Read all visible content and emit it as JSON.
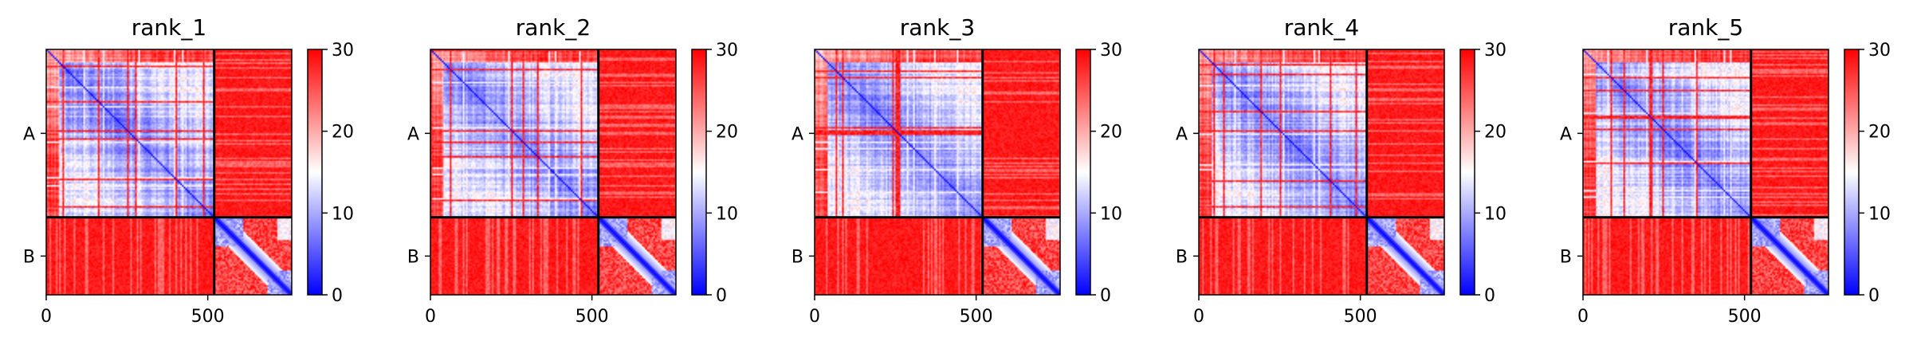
{
  "chart_data": {
    "type": "heatmap",
    "chains": [
      {
        "label": "A",
        "length": 520
      },
      {
        "label": "B",
        "length": 240
      }
    ],
    "total_length": 760,
    "x_ticks": [
      0,
      500
    ],
    "colorbar": {
      "min": 0,
      "max": 30,
      "ticks": [
        0,
        10,
        20,
        30
      ],
      "colormap": "bwr",
      "colors": {
        "low": "#0000ff",
        "mid": "#ffffff",
        "high": "#ff0000"
      }
    },
    "panels": [
      {
        "title": "rank_1"
      },
      {
        "title": "rank_2"
      },
      {
        "title": "rank_3"
      },
      {
        "title": "rank_4"
      },
      {
        "title": "rank_5"
      }
    ],
    "chain_boundary": 520,
    "grid": false
  }
}
